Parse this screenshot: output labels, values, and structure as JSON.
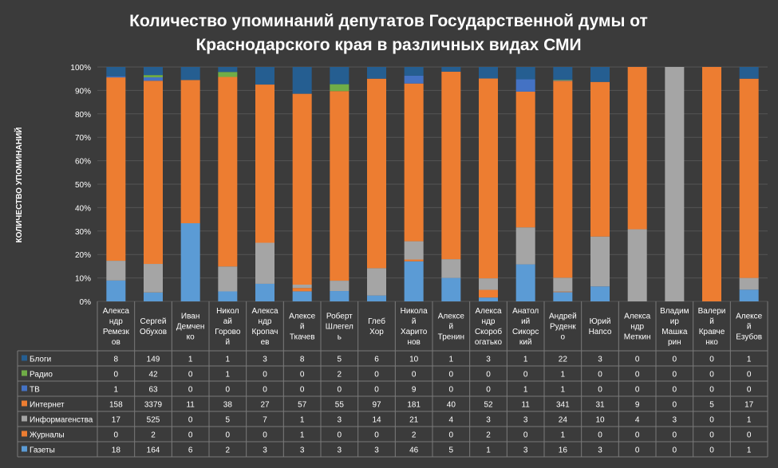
{
  "chart_data": {
    "type": "bar",
    "stacked": "percent",
    "title": "Количество упоминаний депутатов Государственной думы от Краснодарского края в различных видах СМИ",
    "title_lines": [
      "Количество упоминаний депутатов Государственной думы от",
      "Краснодарского края в различных видах СМИ"
    ],
    "ylabel": "КОЛИЧЕСТВО УПОМИНАНИЙ",
    "ylim": [
      0,
      100
    ],
    "yticks": [
      "0%",
      "10%",
      "20%",
      "30%",
      "40%",
      "50%",
      "60%",
      "70%",
      "80%",
      "90%",
      "100%"
    ],
    "grid": true,
    "legend_placement": "data-table",
    "categories": [
      "Александр Ремезков",
      "Сергей Обухов",
      "Иван Демченко",
      "Николай Горовой",
      "Александр Кропачев",
      "Алексей Ткачев",
      "Роберт Шлегель",
      "Глеб Хор",
      "Николай Харитонов",
      "Алексей Тренин",
      "Александр Скоробогатько",
      "Анатолий Сикорский",
      "Андрей Руденко",
      "Юрий Напсо",
      "Александр Меткин",
      "Владимир Машкарин",
      "Валерий Кравченко",
      "Алексей Езубов"
    ],
    "category_label_lines": [
      [
        "Алекса",
        "ндр",
        "Ремезк",
        "ов"
      ],
      [
        "Сергей",
        "Обухов"
      ],
      [
        "Иван",
        "Демчен",
        "ко"
      ],
      [
        "Никол",
        "ай",
        "Горово",
        "й"
      ],
      [
        "Алекса",
        "ндр",
        "Кропач",
        "ев"
      ],
      [
        "Алексе",
        "й",
        "Ткачев"
      ],
      [
        "Роберт",
        "Шлегел",
        "ь"
      ],
      [
        "Глеб",
        "Хор"
      ],
      [
        "Никола",
        "й",
        "Харито",
        "нов"
      ],
      [
        "Алексе",
        "й",
        "Тренин"
      ],
      [
        "Алекса",
        "ндр",
        "Скороб",
        "огатько"
      ],
      [
        "Анатол",
        "ий",
        "Сикорс",
        "кий"
      ],
      [
        "Андрей",
        "Руденк",
        "о"
      ],
      [
        "Юрий",
        "Напсо"
      ],
      [
        "Алекса",
        "ндр",
        "Меткин"
      ],
      [
        "Владим",
        "ир",
        "Машка",
        "рин"
      ],
      [
        "Валери",
        "й",
        "Кравче",
        "нко"
      ],
      [
        "Алексе",
        "й",
        "Езубов"
      ]
    ],
    "series": [
      {
        "name": "Газеты",
        "color": "#5b9bd5",
        "values": [
          18,
          164,
          6,
          2,
          3,
          3,
          3,
          3,
          46,
          5,
          1,
          3,
          16,
          3,
          0,
          0,
          0,
          1
        ]
      },
      {
        "name": "Журналы",
        "color": "#ed7d31",
        "values": [
          0,
          2,
          0,
          0,
          0,
          1,
          0,
          0,
          2,
          0,
          2,
          0,
          1,
          0,
          0,
          0,
          0,
          0
        ]
      },
      {
        "name": "Информагенства",
        "color": "#a5a5a5",
        "values": [
          17,
          525,
          0,
          5,
          7,
          1,
          3,
          14,
          21,
          4,
          3,
          3,
          24,
          10,
          4,
          3,
          0,
          1
        ]
      },
      {
        "name": "Интернет",
        "color": "#ed7d31",
        "values": [
          158,
          3379,
          11,
          38,
          27,
          57,
          55,
          97,
          181,
          40,
          52,
          11,
          341,
          31,
          9,
          0,
          5,
          17
        ]
      },
      {
        "name": "ТВ",
        "color": "#4472c4",
        "values": [
          1,
          63,
          0,
          0,
          0,
          0,
          0,
          0,
          9,
          0,
          0,
          1,
          1,
          0,
          0,
          0,
          0,
          0
        ]
      },
      {
        "name": "Радио",
        "color": "#70ad47",
        "values": [
          0,
          42,
          0,
          1,
          0,
          0,
          2,
          0,
          0,
          0,
          0,
          0,
          1,
          0,
          0,
          0,
          0,
          0
        ]
      },
      {
        "name": "Блоги",
        "color": "#255e91",
        "values": [
          8,
          149,
          1,
          1,
          3,
          8,
          5,
          6,
          10,
          1,
          3,
          1,
          22,
          3,
          0,
          0,
          0,
          1
        ]
      }
    ],
    "table_row_order": [
      "Блоги",
      "Радио",
      "ТВ",
      "Интернет",
      "Информагенства",
      "Журналы",
      "Газеты"
    ]
  },
  "colors": {
    "background": "#3b3b3b",
    "grid": "#555555",
    "text": "#ffffff",
    "table_border": "#7a7a7a"
  }
}
